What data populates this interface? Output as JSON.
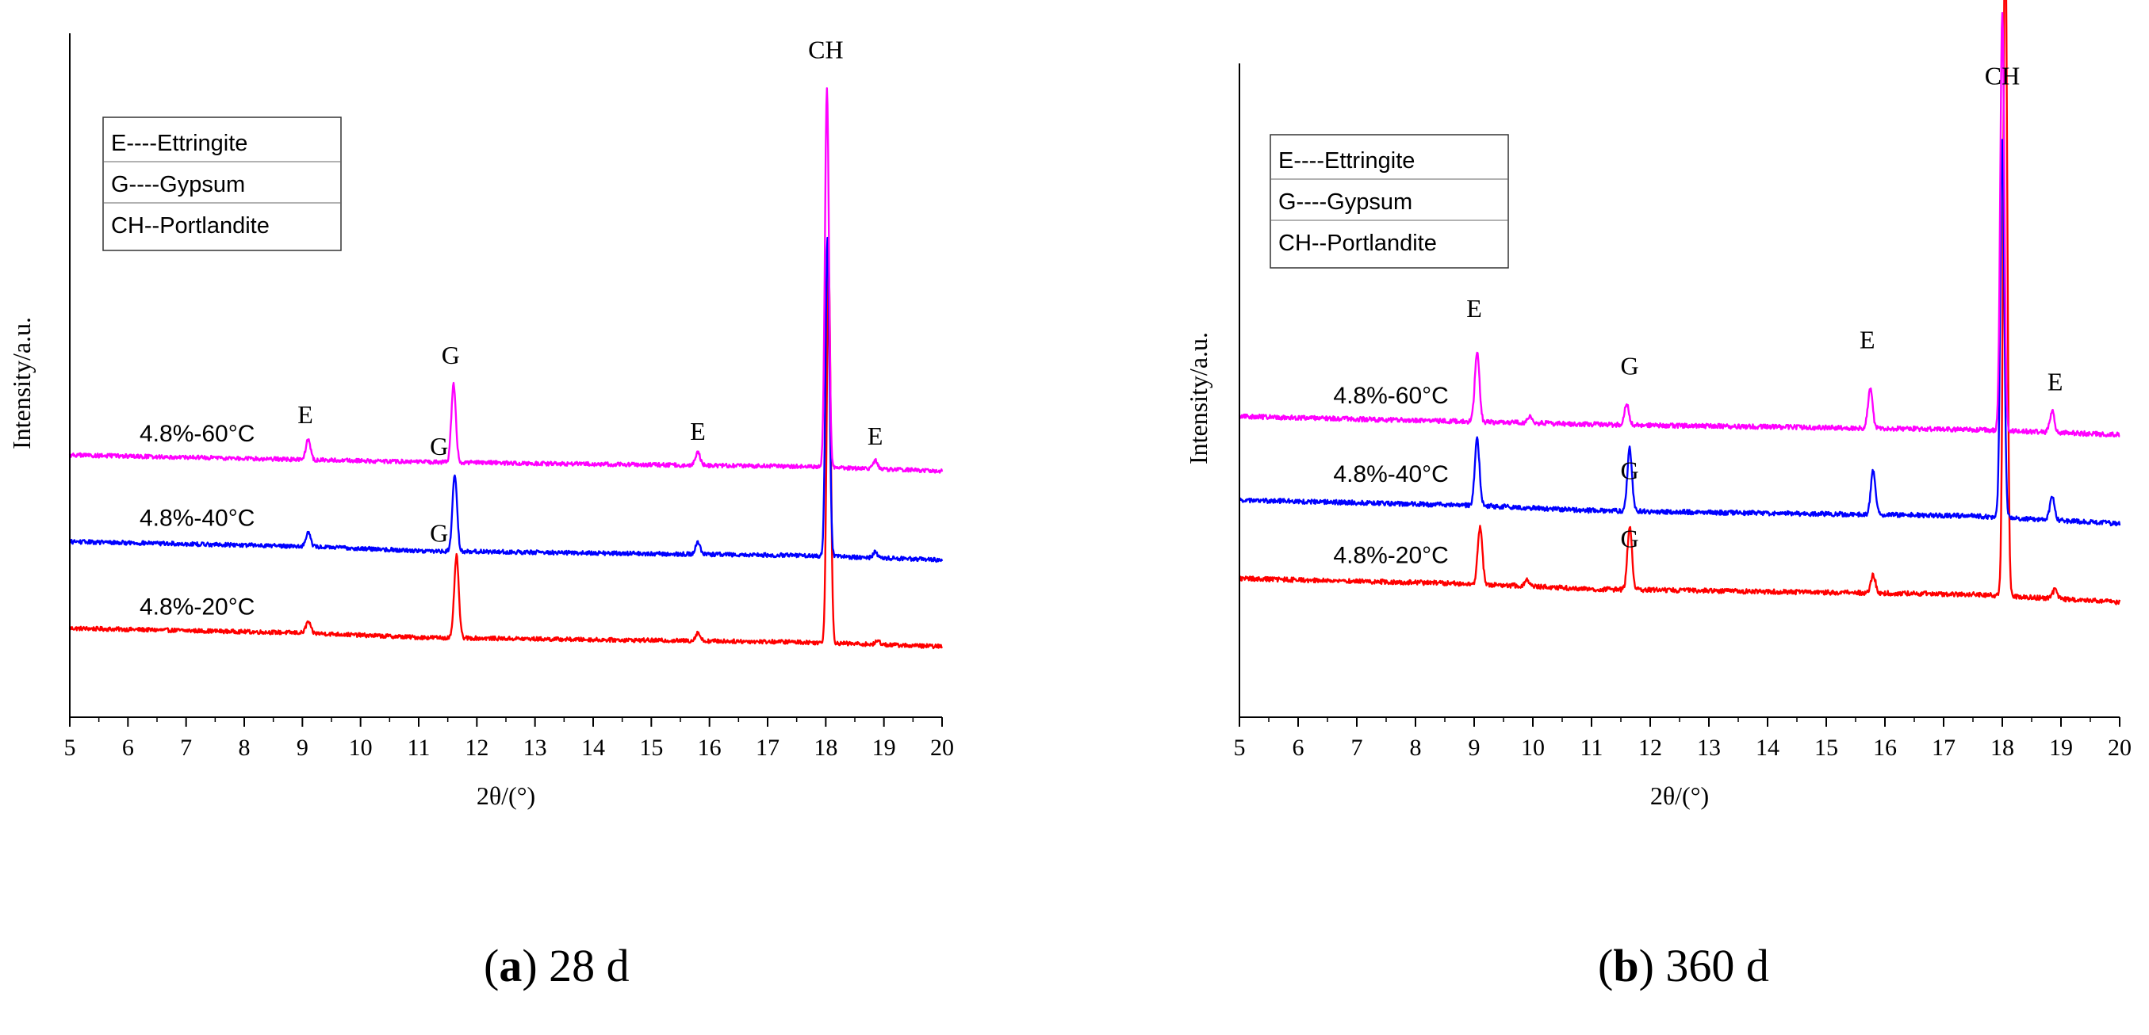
{
  "chart_data": [
    {
      "type": "line",
      "panel": "a",
      "caption_letter": "a",
      "caption_text": ") 28 d",
      "xlabel": "2θ/(°)",
      "ylabel": "Intensity/a.u.",
      "xlim": [
        5,
        20
      ],
      "xticks": [
        "5",
        "6",
        "7",
        "8",
        "9",
        "10",
        "11",
        "12",
        "13",
        "14",
        "15",
        "16",
        "17",
        "18",
        "19",
        "20"
      ],
      "legend": [
        "E----Ettringite",
        "G----Gypsum",
        "CH--Portlandite"
      ],
      "legend_position": "top-left",
      "series": [
        {
          "name": "4.8%-20°C",
          "color": "#ff0000",
          "baseline": [
            [
              5,
              0.195
            ],
            [
              9,
              0.185
            ],
            [
              11,
              0.175
            ],
            [
              14,
              0.17
            ],
            [
              17.5,
              0.165
            ],
            [
              20,
              0.155
            ]
          ],
          "peaks": [
            [
              9.1,
              0.025
            ],
            [
              11.65,
              0.18
            ],
            [
              15.8,
              0.018
            ],
            [
              18.05,
              0.83
            ],
            [
              18.9,
              0.008
            ]
          ]
        },
        {
          "name": "4.8%-40°C",
          "color": "#0000ff",
          "baseline": [
            [
              5,
              0.385
            ],
            [
              9,
              0.375
            ],
            [
              11,
              0.365
            ],
            [
              14,
              0.36
            ],
            [
              17.5,
              0.355
            ],
            [
              20,
              0.345
            ]
          ],
          "peaks": [
            [
              9.1,
              0.032
            ],
            [
              11.62,
              0.17
            ],
            [
              15.8,
              0.027
            ],
            [
              18.03,
              0.7
            ],
            [
              18.85,
              0.012
            ]
          ]
        },
        {
          "name": "4.8%-60°C",
          "color": "#ff00ff",
          "baseline": [
            [
              5,
              0.575
            ],
            [
              9,
              0.565
            ],
            [
              11,
              0.56
            ],
            [
              14,
              0.555
            ],
            [
              17.5,
              0.55
            ],
            [
              20,
              0.54
            ]
          ],
          "peaks": [
            [
              9.1,
              0.045
            ],
            [
              11.6,
              0.17
            ],
            [
              15.8,
              0.03
            ],
            [
              18.02,
              0.83
            ],
            [
              18.85,
              0.018
            ]
          ]
        }
      ],
      "annotations": [
        {
          "text": "E",
          "x": 9.05,
          "y": 0.645
        },
        {
          "text": "G",
          "x": 11.55,
          "y": 0.775
        },
        {
          "text": "E",
          "x": 15.8,
          "y": 0.608
        },
        {
          "text": "CH",
          "x": 18.0,
          "y": 1.445
        },
        {
          "text": "E",
          "x": 18.85,
          "y": 0.598
        },
        {
          "text": "G",
          "x": 11.35,
          "y": 0.575
        },
        {
          "text": "G",
          "x": 11.35,
          "y": 0.385
        },
        {
          "text": "4.8%-60°C",
          "x": 6.2,
          "y": 0.605
        },
        {
          "text": "4.8%-40°C",
          "x": 6.2,
          "y": 0.42
        },
        {
          "text": "4.8%-20°C",
          "x": 6.2,
          "y": 0.225
        }
      ]
    },
    {
      "type": "line",
      "panel": "b",
      "caption_letter": "b",
      "caption_text": ") 360 d",
      "xlabel": "2θ/(°)",
      "ylabel": "Intensity/a.u.",
      "xlim": [
        5,
        20
      ],
      "xticks": [
        "5",
        "6",
        "7",
        "8",
        "9",
        "10",
        "11",
        "12",
        "13",
        "14",
        "15",
        "16",
        "17",
        "18",
        "19",
        "20"
      ],
      "legend": [
        "E----Ettringite",
        "G----Gypsum",
        "CH--Portlandite"
      ],
      "legend_position": "top-left",
      "series": [
        {
          "name": "4.8%-20°C",
          "color": "#ff0000",
          "baseline": [
            [
              5,
              0.265
            ],
            [
              9,
              0.255
            ],
            [
              11,
              0.245
            ],
            [
              14,
              0.24
            ],
            [
              17.5,
              0.235
            ],
            [
              20,
              0.22
            ]
          ],
          "peaks": [
            [
              9.1,
              0.11
            ],
            [
              9.9,
              0.012
            ],
            [
              11.65,
              0.12
            ],
            [
              15.8,
              0.035
            ],
            [
              18.05,
              1.3
            ],
            [
              18.9,
              0.018
            ]
          ]
        },
        {
          "name": "4.8%-40°C",
          "color": "#0000ff",
          "baseline": [
            [
              5,
              0.415
            ],
            [
              9,
              0.405
            ],
            [
              11,
              0.395
            ],
            [
              14,
              0.39
            ],
            [
              17.5,
              0.385
            ],
            [
              20,
              0.37
            ]
          ],
          "peaks": [
            [
              9.05,
              0.13
            ],
            [
              11.65,
              0.12
            ],
            [
              15.8,
              0.085
            ],
            [
              18.0,
              0.72
            ],
            [
              18.85,
              0.045
            ]
          ]
        },
        {
          "name": "4.8%-60°C",
          "color": "#ff00ff",
          "baseline": [
            [
              5,
              0.575
            ],
            [
              9,
              0.565
            ],
            [
              11,
              0.56
            ],
            [
              14,
              0.555
            ],
            [
              17.5,
              0.55
            ],
            [
              20,
              0.54
            ]
          ],
          "peaks": [
            [
              9.05,
              0.135
            ],
            [
              9.95,
              0.012
            ],
            [
              11.6,
              0.04
            ],
            [
              15.75,
              0.075
            ],
            [
              18.0,
              0.8
            ],
            [
              18.85,
              0.04
            ]
          ]
        }
      ],
      "annotations": [
        {
          "text": "E",
          "x": 9.0,
          "y": 0.765
        },
        {
          "text": "G",
          "x": 11.65,
          "y": 0.655
        },
        {
          "text": "E",
          "x": 15.7,
          "y": 0.705
        },
        {
          "text": "CH",
          "x": 18.0,
          "y": 1.21
        },
        {
          "text": "E",
          "x": 18.9,
          "y": 0.625
        },
        {
          "text": "G",
          "x": 11.65,
          "y": 0.455
        },
        {
          "text": "G",
          "x": 11.65,
          "y": 0.325
        },
        {
          "text": "4.8%-60°C",
          "x": 6.6,
          "y": 0.6
        },
        {
          "text": "4.8%-40°C",
          "x": 6.6,
          "y": 0.45
        },
        {
          "text": "4.8%-20°C",
          "x": 6.6,
          "y": 0.295
        }
      ]
    }
  ]
}
